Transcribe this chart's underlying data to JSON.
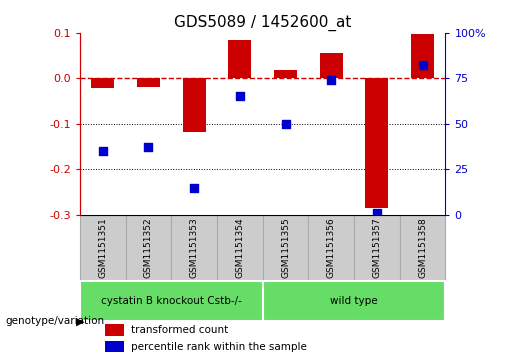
{
  "title": "GDS5089 / 1452600_at",
  "categories": [
    "GSM1151351",
    "GSM1151352",
    "GSM1151353",
    "GSM1151354",
    "GSM1151355",
    "GSM1151356",
    "GSM1151357",
    "GSM1151358"
  ],
  "red_values": [
    -0.022,
    -0.02,
    -0.118,
    0.083,
    0.018,
    0.055,
    -0.285,
    0.098
  ],
  "blue_values_pct": [
    35,
    37,
    15,
    65,
    50,
    74,
    1,
    82
  ],
  "group1_samples": 4,
  "group2_samples": 4,
  "group1_label": "cystatin B knockout Cstb-/-",
  "group2_label": "wild type",
  "genotype_label": "genotype/variation",
  "ylim_left": [
    -0.3,
    0.1
  ],
  "ylim_right": [
    0,
    100
  ],
  "red_color": "#CC0000",
  "blue_color": "#0000CC",
  "bar_width": 0.5,
  "legend_red": "transformed count",
  "legend_blue": "percentile rank within the sample",
  "group1_color": "#66DD66",
  "group2_color": "#66DD66",
  "dashed_line_color": "#CC0000",
  "tick_left": [
    -0.3,
    -0.2,
    -0.1,
    0.0,
    0.1
  ],
  "tick_right_vals": [
    0,
    25,
    50,
    75,
    100
  ],
  "tick_right_labels": [
    "0",
    "25",
    "50",
    "75",
    "100%"
  ],
  "sample_box_color": "#CCCCCC",
  "sample_box_edge": "#AAAAAA"
}
